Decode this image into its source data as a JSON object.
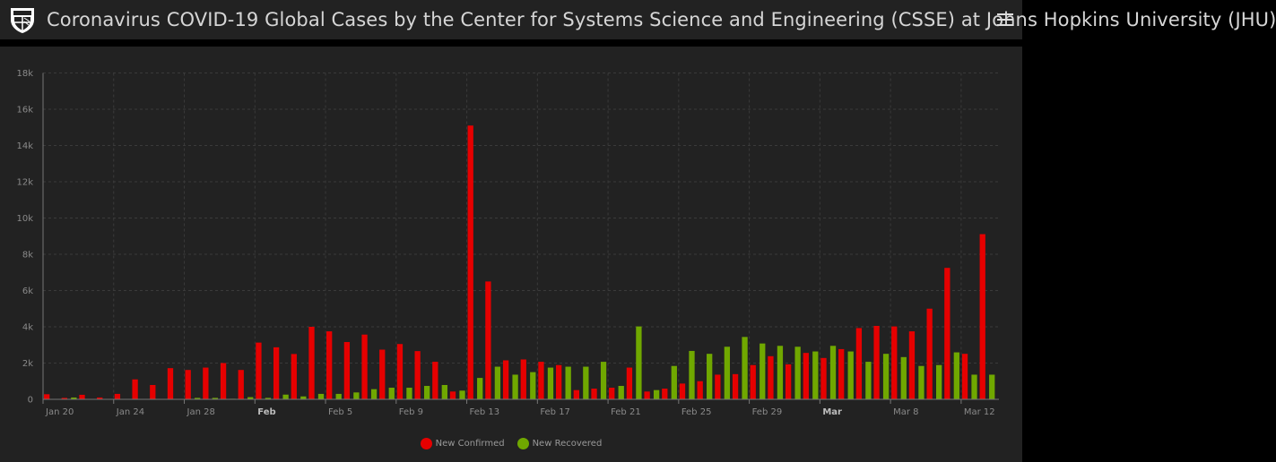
{
  "header": {
    "title": "Coronavirus COVID-19 Global Cases by the Center for Systems Science and Engineering (CSSE) at Johns Hopkins University (JHU)",
    "logo": "jhu-shield-logo",
    "menu_icon": "hamburger-menu-icon"
  },
  "chart_data": {
    "type": "bar",
    "title": "",
    "xlabel": "",
    "ylabel": "",
    "ylim": [
      0,
      18000
    ],
    "y_ticks": [
      {
        "value": 0,
        "label": "0"
      },
      {
        "value": 2000,
        "label": "2k"
      },
      {
        "value": 4000,
        "label": "4k"
      },
      {
        "value": 6000,
        "label": "6k"
      },
      {
        "value": 8000,
        "label": "8k"
      },
      {
        "value": 10000,
        "label": "10k"
      },
      {
        "value": 12000,
        "label": "12k"
      },
      {
        "value": 14000,
        "label": "14k"
      },
      {
        "value": 16000,
        "label": "16k"
      },
      {
        "value": 18000,
        "label": "18k"
      }
    ],
    "x_ticks": [
      {
        "date": "2020-01-20",
        "label": "Jan 20",
        "bold": false
      },
      {
        "date": "2020-01-24",
        "label": "Jan 24",
        "bold": false
      },
      {
        "date": "2020-01-28",
        "label": "Jan 28",
        "bold": false
      },
      {
        "date": "2020-02-01",
        "label": "Feb",
        "bold": true
      },
      {
        "date": "2020-02-05",
        "label": "Feb 5",
        "bold": false
      },
      {
        "date": "2020-02-09",
        "label": "Feb 9",
        "bold": false
      },
      {
        "date": "2020-02-13",
        "label": "Feb 13",
        "bold": false
      },
      {
        "date": "2020-02-17",
        "label": "Feb 17",
        "bold": false
      },
      {
        "date": "2020-02-21",
        "label": "Feb 21",
        "bold": false
      },
      {
        "date": "2020-02-25",
        "label": "Feb 25",
        "bold": false
      },
      {
        "date": "2020-02-29",
        "label": "Feb 29",
        "bold": false
      },
      {
        "date": "2020-03-04",
        "label": "Mar",
        "bold": true
      },
      {
        "date": "2020-03-08",
        "label": "Mar 8",
        "bold": false
      },
      {
        "date": "2020-03-12",
        "label": "Mar 12",
        "bold": false
      }
    ],
    "grid": true,
    "legend_position": "bottom-center",
    "x": [
      "2020-01-20",
      "2020-01-21",
      "2020-01-22",
      "2020-01-23",
      "2020-01-24",
      "2020-01-25",
      "2020-01-26",
      "2020-01-27",
      "2020-01-28",
      "2020-01-29",
      "2020-01-30",
      "2020-01-31",
      "2020-02-01",
      "2020-02-02",
      "2020-02-03",
      "2020-02-04",
      "2020-02-05",
      "2020-02-06",
      "2020-02-07",
      "2020-02-08",
      "2020-02-09",
      "2020-02-10",
      "2020-02-11",
      "2020-02-12",
      "2020-02-13",
      "2020-02-14",
      "2020-02-15",
      "2020-02-16",
      "2020-02-17",
      "2020-02-18",
      "2020-02-19",
      "2020-02-20",
      "2020-02-21",
      "2020-02-22",
      "2020-02-23",
      "2020-02-24",
      "2020-02-25",
      "2020-02-26",
      "2020-02-27",
      "2020-02-28",
      "2020-02-29",
      "2020-03-01",
      "2020-03-02",
      "2020-03-03",
      "2020-03-04",
      "2020-03-05",
      "2020-03-06",
      "2020-03-07",
      "2020-03-08",
      "2020-03-09",
      "2020-03-10",
      "2020-03-11",
      "2020-03-12",
      "2020-03-13"
    ],
    "series": [
      {
        "name": "New Confirmed",
        "color": "#e60000",
        "values": [
          280,
          80,
          250,
          100,
          300,
          1100,
          790,
          1720,
          1620,
          1750,
          2000,
          1620,
          3130,
          2870,
          2500,
          4000,
          3750,
          3160,
          3570,
          2740,
          3050,
          2660,
          2070,
          430,
          15100,
          6500,
          2150,
          2200,
          2070,
          1890,
          510,
          590,
          640,
          1750,
          430,
          590,
          870,
          1000,
          1360,
          1390,
          1890,
          2380,
          1930,
          2560,
          2280,
          2770,
          3930,
          4050,
          4020,
          3750,
          5000,
          7250,
          2510,
          9110
        ]
      },
      {
        "name": "New Recovered",
        "color": "#70a800",
        "values": [
          0,
          100,
          20,
          20,
          20,
          20,
          20,
          20,
          80,
          80,
          30,
          120,
          80,
          260,
          160,
          300,
          300,
          380,
          560,
          640,
          640,
          740,
          790,
          480,
          1180,
          1800,
          1360,
          1500,
          1750,
          1800,
          1800,
          2070,
          740,
          4020,
          510,
          1840,
          2670,
          2510,
          2900,
          3440,
          3080,
          2950,
          2900,
          2640,
          2950,
          2640,
          2070,
          2510,
          2330,
          1840,
          1890,
          2590,
          1360,
          1360
        ]
      }
    ]
  }
}
